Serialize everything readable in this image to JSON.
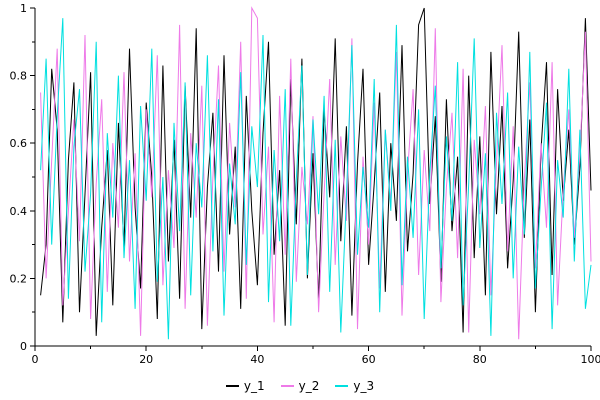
{
  "figure": {
    "background": "#ffffff"
  },
  "colors": {
    "axis": "#000000",
    "text": "#000000"
  },
  "legend": {
    "labels": [
      "y_1",
      "y_2",
      "y_3"
    ]
  },
  "chart_data": {
    "type": "line",
    "title": "",
    "xlabel": "",
    "ylabel": "",
    "xlim": [
      0,
      100
    ],
    "ylim": [
      0,
      1
    ],
    "grid": false,
    "legend_position": "bottom-center",
    "x_start": 1,
    "x_step": 1,
    "x_ticks": [
      0,
      20,
      40,
      60,
      80,
      100
    ],
    "x_tick_labels": [
      "0",
      "20",
      "40",
      "60",
      "80",
      "100"
    ],
    "x_minor_ticks": [
      10,
      30,
      50,
      70,
      90
    ],
    "y_ticks": [
      0,
      0.2,
      0.4,
      0.6,
      0.8,
      1
    ],
    "y_tick_labels": [
      "0",
      "0.2",
      "0.4",
      "0.6",
      "0.8",
      "1"
    ],
    "y_minor_ticks": [
      0.1,
      0.3,
      0.5,
      0.7,
      0.9
    ],
    "series": [
      {
        "name": "y_1",
        "color": "#000000",
        "values": [
          0.15,
          0.3,
          0.82,
          0.64,
          0.07,
          0.55,
          0.78,
          0.1,
          0.45,
          0.81,
          0.03,
          0.35,
          0.58,
          0.12,
          0.66,
          0.29,
          0.88,
          0.41,
          0.17,
          0.72,
          0.5,
          0.08,
          0.83,
          0.25,
          0.61,
          0.14,
          0.77,
          0.38,
          0.94,
          0.05,
          0.47,
          0.69,
          0.22,
          0.86,
          0.33,
          0.59,
          0.11,
          0.74,
          0.4,
          0.18,
          0.63,
          0.9,
          0.27,
          0.52,
          0.06,
          0.79,
          0.36,
          0.85,
          0.2,
          0.57,
          0.13,
          0.7,
          0.44,
          0.91,
          0.31,
          0.65,
          0.09,
          0.54,
          0.82,
          0.24,
          0.48,
          0.75,
          0.16,
          0.6,
          0.37,
          0.89,
          0.28,
          0.51,
          0.95,
          1.0,
          0.42,
          0.68,
          0.19,
          0.73,
          0.34,
          0.56,
          0.04,
          0.8,
          0.26,
          0.62,
          0.15,
          0.87,
          0.39,
          0.71,
          0.23,
          0.49,
          0.93,
          0.32,
          0.67,
          0.1,
          0.58,
          0.84,
          0.21,
          0.76,
          0.43,
          0.64,
          0.3,
          0.53,
          0.97,
          0.46
        ]
      },
      {
        "name": "y_2",
        "color": "#ee7ae8",
        "values": [
          0.75,
          0.2,
          0.55,
          0.88,
          0.12,
          0.4,
          0.67,
          0.31,
          0.92,
          0.08,
          0.48,
          0.73,
          0.16,
          0.6,
          0.35,
          0.81,
          0.25,
          0.57,
          0.03,
          0.7,
          0.44,
          0.86,
          0.18,
          0.52,
          0.29,
          0.95,
          0.11,
          0.63,
          0.38,
          0.77,
          0.06,
          0.5,
          0.83,
          0.22,
          0.66,
          0.41,
          0.9,
          0.14,
          1.0,
          0.97,
          0.33,
          0.59,
          0.07,
          0.74,
          0.27,
          0.85,
          0.19,
          0.53,
          0.36,
          0.68,
          0.1,
          0.45,
          0.79,
          0.24,
          0.62,
          0.37,
          0.91,
          0.05,
          0.56,
          0.3,
          0.72,
          0.17,
          0.64,
          0.42,
          0.87,
          0.09,
          0.51,
          0.76,
          0.21,
          0.58,
          0.34,
          0.94,
          0.13,
          0.47,
          0.69,
          0.26,
          0.82,
          0.04,
          0.61,
          0.39,
          0.71,
          0.15,
          0.54,
          0.89,
          0.28,
          0.65,
          0.02,
          0.49,
          0.78,
          0.23,
          0.6,
          0.35,
          0.84,
          0.12,
          0.46,
          0.7,
          0.32,
          0.57,
          0.93,
          0.25
        ]
      },
      {
        "name": "y_3",
        "color": "#00e0e0",
        "values": [
          0.52,
          0.85,
          0.3,
          0.68,
          0.97,
          0.14,
          0.59,
          0.76,
          0.22,
          0.45,
          0.9,
          0.07,
          0.63,
          0.38,
          0.8,
          0.26,
          0.55,
          0.11,
          0.71,
          0.43,
          0.88,
          0.19,
          0.5,
          0.02,
          0.66,
          0.34,
          0.78,
          0.15,
          0.6,
          0.41,
          0.86,
          0.28,
          0.73,
          0.09,
          0.54,
          0.36,
          0.81,
          0.24,
          0.65,
          0.47,
          0.92,
          0.13,
          0.58,
          0.31,
          0.76,
          0.06,
          0.49,
          0.83,
          0.21,
          0.67,
          0.39,
          0.74,
          0.16,
          0.61,
          0.04,
          0.44,
          0.89,
          0.27,
          0.53,
          0.35,
          0.79,
          0.1,
          0.64,
          0.4,
          0.95,
          0.18,
          0.56,
          0.32,
          0.7,
          0.08,
          0.51,
          0.77,
          0.23,
          0.62,
          0.37,
          0.84,
          0.12,
          0.48,
          0.91,
          0.29,
          0.57,
          0.03,
          0.69,
          0.42,
          0.75,
          0.2,
          0.59,
          0.33,
          0.87,
          0.17,
          0.46,
          0.72,
          0.05,
          0.55,
          0.38,
          0.82,
          0.25,
          0.64,
          0.11,
          0.24
        ]
      }
    ]
  }
}
